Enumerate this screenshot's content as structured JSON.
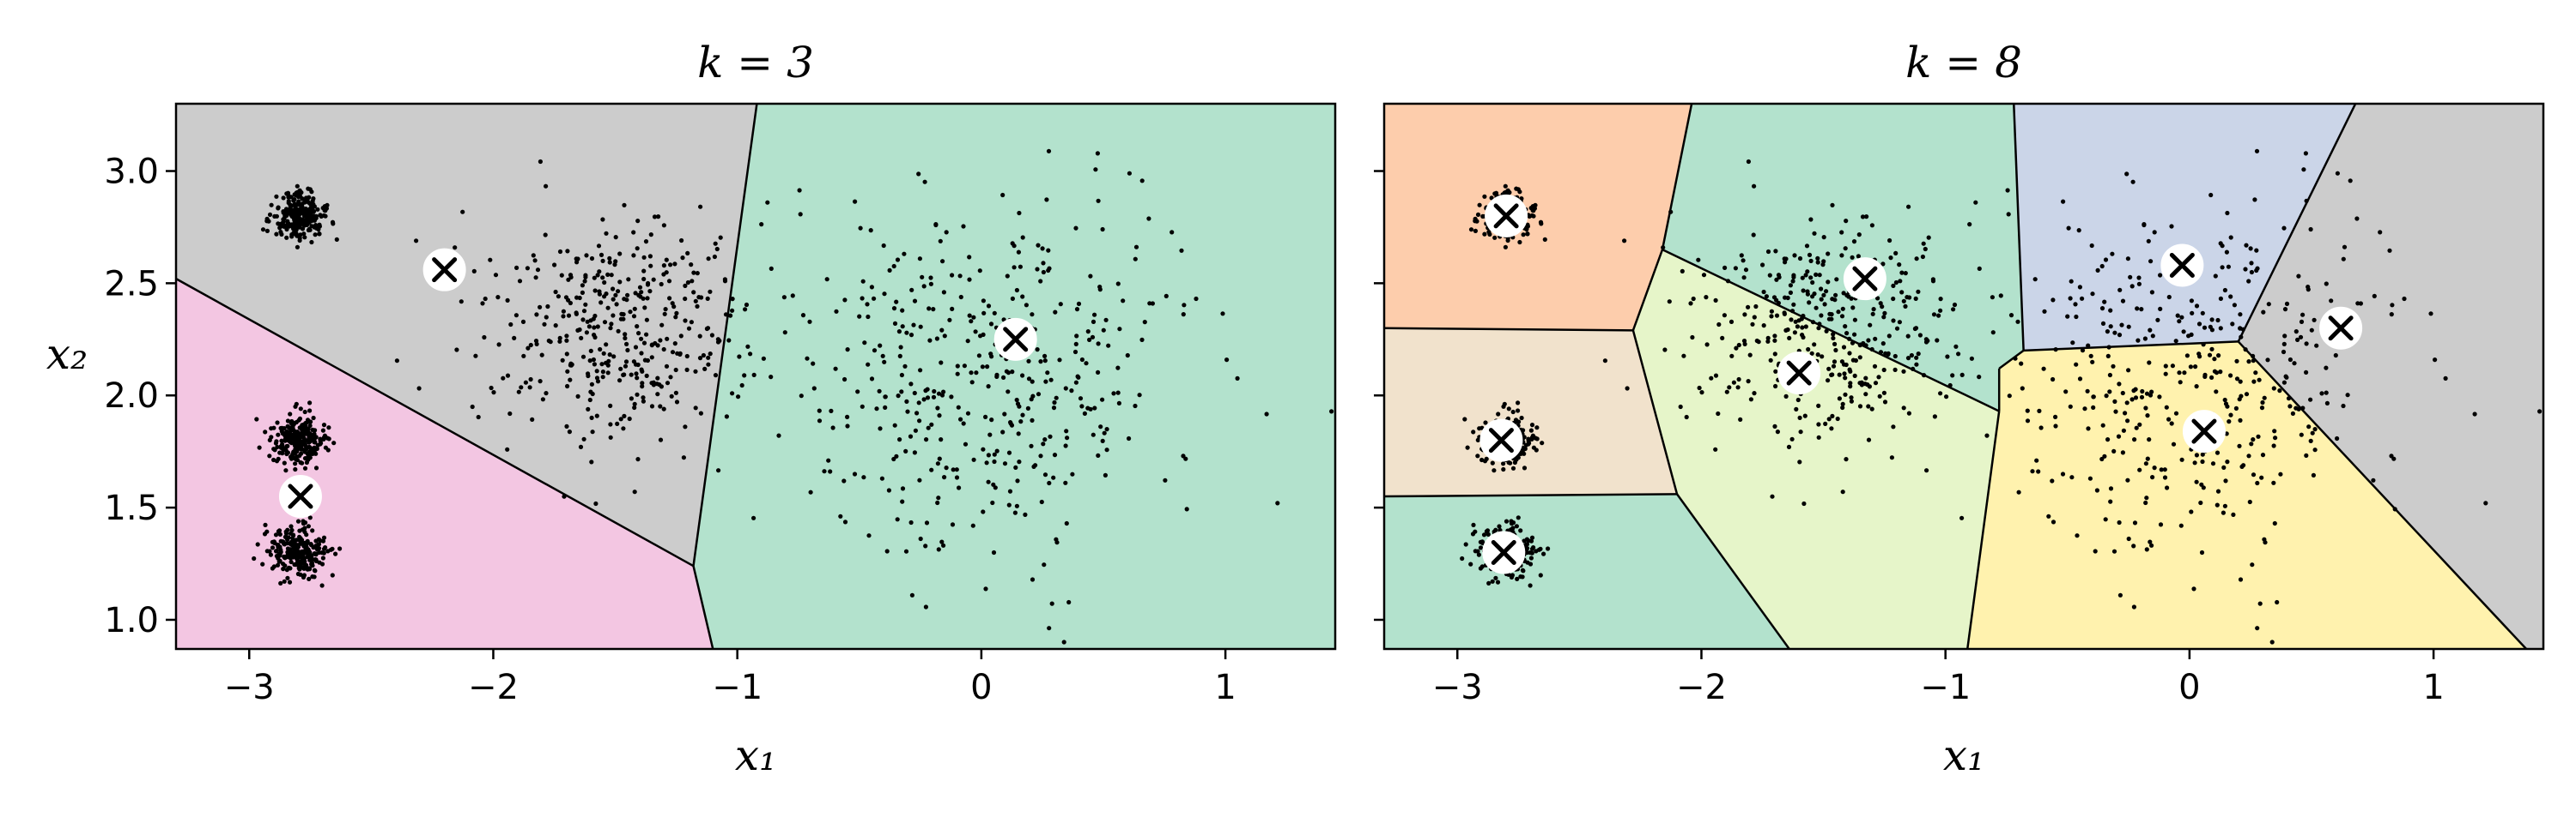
{
  "chart_data": [
    {
      "type": "scatter",
      "title": "k = 3",
      "xlabel": "x₁",
      "ylabel": "x₂",
      "xlim": [
        -3.3,
        1.45
      ],
      "ylim": [
        0.87,
        3.3
      ],
      "xticks": [
        "−3",
        "−2",
        "−1",
        "0",
        "1"
      ],
      "xtick_values": [
        -3,
        -2,
        -1,
        0,
        1
      ],
      "yticks": [
        "1.0",
        "1.5",
        "2.0",
        "2.5",
        "3.0"
      ],
      "ytick_values": [
        1.0,
        1.5,
        2.0,
        2.5,
        3.0
      ],
      "grid": false,
      "regions": [
        {
          "color": "#cccccc",
          "polygon": [
            [
              -3.3,
              3.3
            ],
            [
              -0.92,
              3.3
            ],
            [
              -1.18,
              1.24
            ],
            [
              -3.3,
              2.52
            ]
          ]
        },
        {
          "color": "#f3c6e2",
          "polygon": [
            [
              -3.3,
              2.52
            ],
            [
              -1.18,
              1.24
            ],
            [
              -1.1,
              0.87
            ],
            [
              -3.3,
              0.87
            ]
          ]
        },
        {
          "color": "#b3e2cd",
          "polygon": [
            [
              -0.92,
              3.3
            ],
            [
              1.45,
              3.3
            ],
            [
              1.45,
              0.87
            ],
            [
              -1.1,
              0.87
            ],
            [
              -1.18,
              1.24
            ]
          ]
        }
      ],
      "boundaries": [
        [
          [
            -3.3,
            2.52
          ],
          [
            -1.18,
            1.24
          ]
        ],
        [
          [
            -0.92,
            3.3
          ],
          [
            -1.18,
            1.24
          ]
        ],
        [
          [
            -1.18,
            1.24
          ],
          [
            -1.1,
            0.87
          ]
        ]
      ],
      "centroids": [
        [
          -2.79,
          1.55
        ],
        [
          -2.2,
          2.56
        ],
        [
          0.14,
          2.25
        ]
      ],
      "clusters": [
        {
          "center": [
            -2.8,
            2.8
          ],
          "std": 0.055,
          "n": 250
        },
        {
          "center": [
            -2.8,
            1.8
          ],
          "std": 0.055,
          "n": 250
        },
        {
          "center": [
            -2.8,
            1.3
          ],
          "std": 0.06,
          "n": 250
        },
        {
          "center": [
            -1.5,
            2.3
          ],
          "std": 0.28,
          "n": 400
        },
        {
          "center": [
            0.05,
            2.1
          ],
          "std": 0.4,
          "n": 420
        }
      ]
    },
    {
      "type": "scatter",
      "title": "k = 8",
      "xlabel": "x₁",
      "ylabel": "",
      "xlim": [
        -3.3,
        1.45
      ],
      "ylim": [
        0.87,
        3.3
      ],
      "xticks": [
        "−3",
        "−2",
        "−1",
        "0",
        "1"
      ],
      "xtick_values": [
        -3,
        -2,
        -1,
        0,
        1
      ],
      "yticks": [],
      "ytick_values": [
        1.0,
        1.5,
        2.0,
        2.5,
        3.0
      ],
      "grid": false,
      "regions": [
        {
          "color": "#fdcdac",
          "polygon": [
            [
              -3.3,
              3.3
            ],
            [
              -2.04,
              3.3
            ],
            [
              -2.16,
              2.65
            ],
            [
              -2.28,
              2.29
            ],
            [
              -3.3,
              2.3
            ]
          ]
        },
        {
          "color": "#b3e2cd",
          "polygon": [
            [
              -2.04,
              3.3
            ],
            [
              -0.72,
              3.3
            ],
            [
              -0.68,
              2.2
            ],
            [
              -0.78,
              2.12
            ],
            [
              -0.78,
              1.93
            ],
            [
              -2.16,
              2.65
            ]
          ]
        },
        {
          "color": "#cbd5e8",
          "polygon": [
            [
              -0.72,
              3.3
            ],
            [
              0.68,
              3.3
            ],
            [
              0.2,
              2.24
            ],
            [
              -0.68,
              2.2
            ]
          ]
        },
        {
          "color": "#cccccc",
          "polygon": [
            [
              0.68,
              3.3
            ],
            [
              1.45,
              3.3
            ],
            [
              1.45,
              0.87
            ],
            [
              1.38,
              0.87
            ],
            [
              0.2,
              2.24
            ]
          ]
        },
        {
          "color": "#f1e2cc",
          "polygon": [
            [
              -3.3,
              2.3
            ],
            [
              -2.28,
              2.29
            ],
            [
              -2.1,
              1.56
            ],
            [
              -3.3,
              1.55
            ]
          ]
        },
        {
          "color": "#e6f5c9",
          "polygon": [
            [
              -2.16,
              2.65
            ],
            [
              -0.78,
              1.93
            ],
            [
              -0.91,
              0.87
            ],
            [
              -1.64,
              0.87
            ],
            [
              -2.1,
              1.56
            ],
            [
              -2.28,
              2.29
            ]
          ]
        },
        {
          "color": "#fff2ae",
          "polygon": [
            [
              -0.78,
              1.93
            ],
            [
              -0.78,
              2.12
            ],
            [
              -0.68,
              2.2
            ],
            [
              0.2,
              2.24
            ],
            [
              1.38,
              0.87
            ],
            [
              -0.91,
              0.87
            ]
          ]
        },
        {
          "color": "#b3e2cd",
          "polygon": [
            [
              -3.3,
              1.55
            ],
            [
              -2.1,
              1.56
            ],
            [
              -1.64,
              0.87
            ],
            [
              -3.3,
              0.87
            ]
          ]
        }
      ],
      "boundaries": [
        [
          [
            -3.3,
            2.3
          ],
          [
            -2.28,
            2.29
          ]
        ],
        [
          [
            -2.04,
            3.3
          ],
          [
            -2.16,
            2.65
          ]
        ],
        [
          [
            -2.16,
            2.65
          ],
          [
            -2.28,
            2.29
          ]
        ],
        [
          [
            -2.16,
            2.65
          ],
          [
            -0.78,
            1.93
          ]
        ],
        [
          [
            -2.28,
            2.29
          ],
          [
            -2.1,
            1.56
          ]
        ],
        [
          [
            -3.3,
            1.55
          ],
          [
            -2.1,
            1.56
          ]
        ],
        [
          [
            -2.1,
            1.56
          ],
          [
            -1.64,
            0.87
          ]
        ],
        [
          [
            -0.72,
            3.3
          ],
          [
            -0.68,
            2.2
          ]
        ],
        [
          [
            -0.68,
            2.2
          ],
          [
            -0.78,
            2.12
          ]
        ],
        [
          [
            -0.78,
            2.12
          ],
          [
            -0.78,
            1.93
          ]
        ],
        [
          [
            -0.78,
            1.93
          ],
          [
            -0.91,
            0.87
          ]
        ],
        [
          [
            -0.68,
            2.2
          ],
          [
            0.2,
            2.24
          ]
        ],
        [
          [
            0.68,
            3.3
          ],
          [
            0.2,
            2.24
          ]
        ],
        [
          [
            0.2,
            2.24
          ],
          [
            1.38,
            0.87
          ]
        ]
      ],
      "centroids": [
        [
          -2.8,
          2.8
        ],
        [
          -2.82,
          1.8
        ],
        [
          -2.81,
          1.3
        ],
        [
          -1.6,
          2.1
        ],
        [
          -1.33,
          2.52
        ],
        [
          -0.03,
          2.58
        ],
        [
          0.06,
          1.84
        ],
        [
          0.62,
          2.3
        ]
      ],
      "clusters": [
        {
          "center": [
            -2.8,
            2.8
          ],
          "std": 0.055,
          "n": 250
        },
        {
          "center": [
            -2.8,
            1.8
          ],
          "std": 0.055,
          "n": 250
        },
        {
          "center": [
            -2.8,
            1.3
          ],
          "std": 0.06,
          "n": 250
        },
        {
          "center": [
            -1.5,
            2.3
          ],
          "std": 0.28,
          "n": 400
        },
        {
          "center": [
            0.05,
            2.1
          ],
          "std": 0.4,
          "n": 420
        }
      ]
    }
  ]
}
